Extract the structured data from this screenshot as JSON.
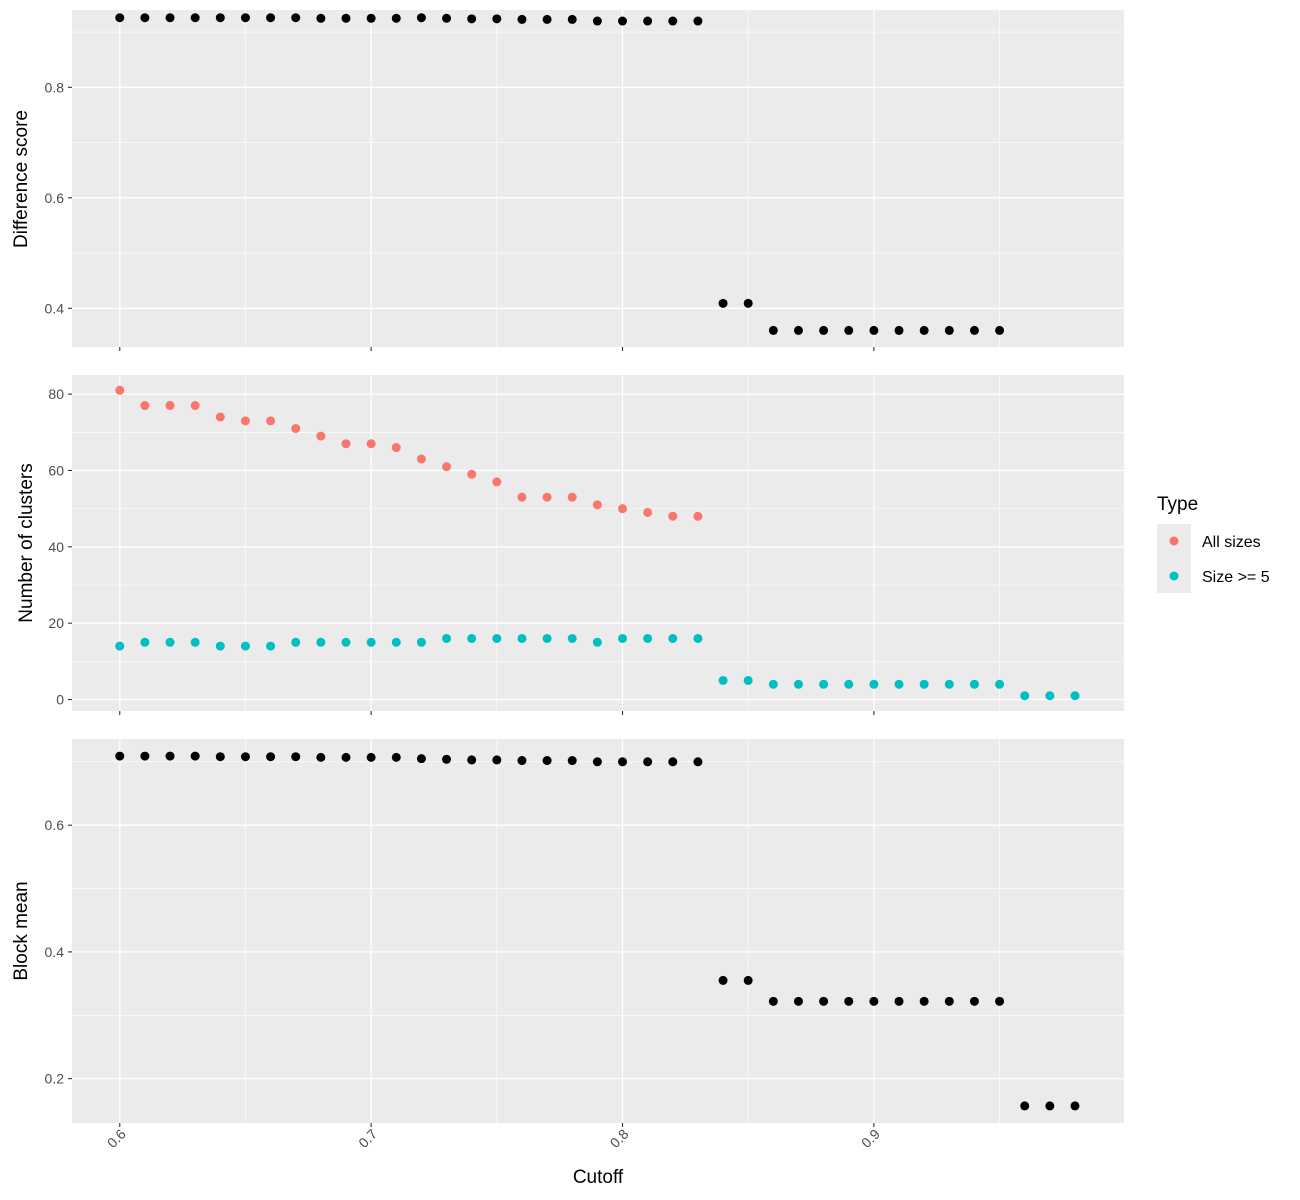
{
  "chart_data": [
    {
      "type": "scatter",
      "ylabel": "Difference score",
      "ylim": [
        0.33,
        0.94
      ],
      "yticks": [
        0.4,
        0.6,
        0.8
      ],
      "ytick_labels": [
        "0.4",
        "0.6",
        "0.8"
      ],
      "series": [
        {
          "color": "#000000",
          "x": [
            0.6,
            0.61,
            0.62,
            0.63,
            0.64,
            0.65,
            0.66,
            0.67,
            0.68,
            0.69,
            0.7,
            0.71,
            0.72,
            0.73,
            0.74,
            0.75,
            0.76,
            0.77,
            0.78,
            0.79,
            0.8,
            0.81,
            0.82,
            0.83,
            0.84,
            0.85,
            0.86,
            0.87,
            0.88,
            0.89,
            0.9,
            0.91,
            0.92,
            0.93,
            0.94,
            0.95
          ],
          "y": [
            0.926,
            0.926,
            0.926,
            0.926,
            0.926,
            0.926,
            0.926,
            0.926,
            0.925,
            0.925,
            0.925,
            0.925,
            0.926,
            0.925,
            0.924,
            0.924,
            0.923,
            0.923,
            0.923,
            0.92,
            0.92,
            0.92,
            0.92,
            0.92,
            0.409,
            0.409,
            0.36,
            0.36,
            0.36,
            0.36,
            0.36,
            0.36,
            0.36,
            0.36,
            0.36,
            0.36
          ]
        }
      ]
    },
    {
      "type": "scatter",
      "ylabel": "Number of clusters",
      "ylim": [
        -3,
        85
      ],
      "yticks": [
        0,
        20,
        40,
        60,
        80
      ],
      "ytick_labels": [
        "0",
        "20",
        "40",
        "60",
        "80"
      ],
      "legend": {
        "title": "Type",
        "position": "right"
      },
      "series": [
        {
          "name": "All sizes",
          "color": "#F8766D",
          "x": [
            0.6,
            0.61,
            0.62,
            0.63,
            0.64,
            0.65,
            0.66,
            0.67,
            0.68,
            0.69,
            0.7,
            0.71,
            0.72,
            0.73,
            0.74,
            0.75,
            0.76,
            0.77,
            0.78,
            0.79,
            0.8,
            0.81,
            0.82,
            0.83
          ],
          "y": [
            81,
            77,
            77,
            77,
            74,
            73,
            73,
            71,
            69,
            67,
            67,
            66,
            63,
            61,
            59,
            57,
            53,
            53,
            53,
            51,
            50,
            49,
            48,
            48
          ]
        },
        {
          "name": "Size >= 5",
          "color": "#00BFC4",
          "x": [
            0.6,
            0.61,
            0.62,
            0.63,
            0.64,
            0.65,
            0.66,
            0.67,
            0.68,
            0.69,
            0.7,
            0.71,
            0.72,
            0.73,
            0.74,
            0.75,
            0.76,
            0.77,
            0.78,
            0.79,
            0.8,
            0.81,
            0.82,
            0.83,
            0.84,
            0.85,
            0.86,
            0.87,
            0.88,
            0.89,
            0.9,
            0.91,
            0.92,
            0.93,
            0.94,
            0.95,
            0.96,
            0.97,
            0.98
          ],
          "y": [
            14,
            15,
            15,
            15,
            14,
            14,
            14,
            15,
            15,
            15,
            15,
            15,
            15,
            16,
            16,
            16,
            16,
            16,
            16,
            15,
            16,
            16,
            16,
            16,
            5,
            5,
            4,
            4,
            4,
            4,
            4,
            4,
            4,
            4,
            4,
            4,
            1,
            1,
            1
          ]
        }
      ]
    },
    {
      "type": "scatter",
      "ylabel": "Block mean",
      "ylim": [
        0.13,
        0.736
      ],
      "yticks": [
        0.2,
        0.4,
        0.6
      ],
      "ytick_labels": [
        "0.2",
        "0.4",
        "0.6"
      ],
      "series": [
        {
          "color": "#000000",
          "x": [
            0.6,
            0.61,
            0.62,
            0.63,
            0.64,
            0.65,
            0.66,
            0.67,
            0.68,
            0.69,
            0.7,
            0.71,
            0.72,
            0.73,
            0.74,
            0.75,
            0.76,
            0.77,
            0.78,
            0.79,
            0.8,
            0.81,
            0.82,
            0.83,
            0.84,
            0.85,
            0.86,
            0.87,
            0.88,
            0.89,
            0.9,
            0.91,
            0.92,
            0.93,
            0.94,
            0.95,
            0.96,
            0.97,
            0.98
          ],
          "y": [
            0.709,
            0.709,
            0.709,
            0.709,
            0.708,
            0.708,
            0.708,
            0.708,
            0.707,
            0.707,
            0.707,
            0.707,
            0.705,
            0.704,
            0.703,
            0.703,
            0.702,
            0.702,
            0.702,
            0.7,
            0.7,
            0.7,
            0.7,
            0.7,
            0.355,
            0.355,
            0.322,
            0.322,
            0.322,
            0.322,
            0.322,
            0.322,
            0.322,
            0.322,
            0.322,
            0.322,
            0.157,
            0.157,
            0.157
          ]
        }
      ]
    }
  ],
  "x_axis": {
    "label": "Cutoff",
    "xlim": [
      0.581,
      0.9995
    ],
    "ticks": [
      0.6,
      0.7,
      0.8,
      0.9
    ],
    "tick_labels": [
      "0.6",
      "0.7",
      "0.8",
      "0.9"
    ]
  },
  "legend": {
    "title": "Type",
    "entries": [
      {
        "label": "All sizes",
        "color": "#F8766D"
      },
      {
        "label": "Size >= 5",
        "color": "#00BFC4"
      }
    ]
  },
  "colors": {
    "panel_background": "#EBEBEB",
    "grid": "#FFFFFF",
    "axis_text": "#4D4D4D"
  }
}
